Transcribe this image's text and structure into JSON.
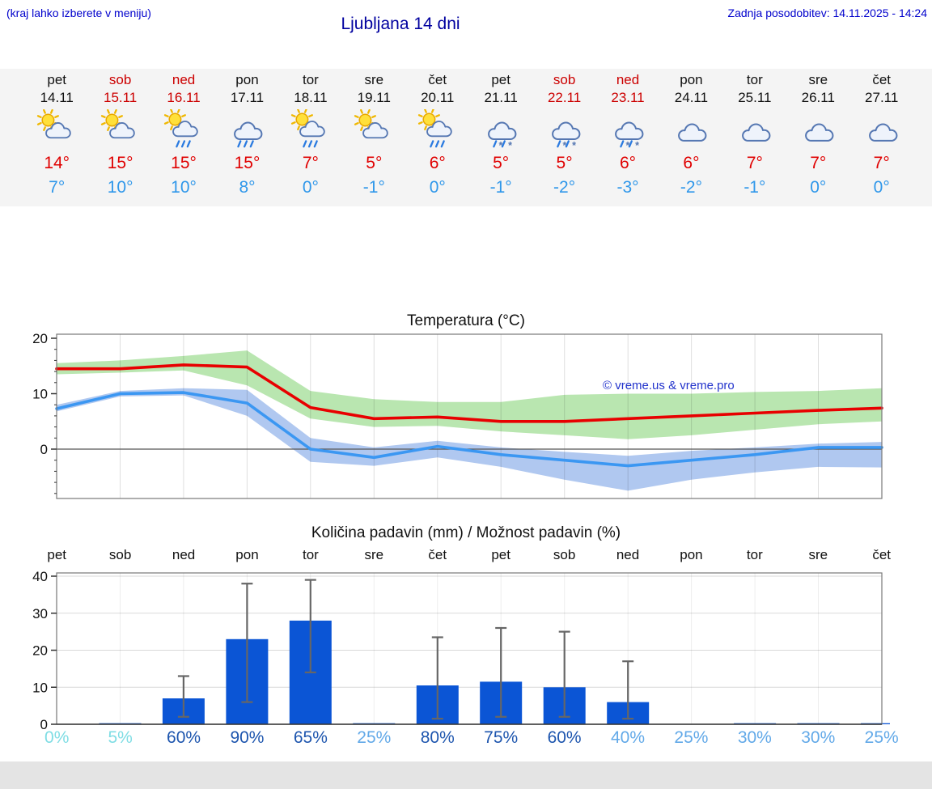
{
  "header": {
    "hint": "(kraj lahko izberete v meniju)",
    "title": "Ljubljana 14 dni",
    "updated": "Zadnja posodobitev: 14.11.2025 - 14:24"
  },
  "forecast": {
    "days": [
      {
        "name": "pet",
        "date": "14.11",
        "weekend": false,
        "icon": "partly-sunny",
        "high": "14°",
        "low": "7°"
      },
      {
        "name": "sob",
        "date": "15.11",
        "weekend": true,
        "icon": "partly-sunny",
        "high": "15°",
        "low": "10°"
      },
      {
        "name": "ned",
        "date": "16.11",
        "weekend": true,
        "icon": "sun-rain",
        "high": "15°",
        "low": "10°"
      },
      {
        "name": "pon",
        "date": "17.11",
        "weekend": false,
        "icon": "rain",
        "high": "15°",
        "low": "8°"
      },
      {
        "name": "tor",
        "date": "18.11",
        "weekend": false,
        "icon": "sun-rain",
        "high": "7°",
        "low": "0°"
      },
      {
        "name": "sre",
        "date": "19.11",
        "weekend": false,
        "icon": "partly-sunny",
        "high": "5°",
        "low": "-1°"
      },
      {
        "name": "čet",
        "date": "20.11",
        "weekend": false,
        "icon": "sun-rain",
        "high": "6°",
        "low": "0°"
      },
      {
        "name": "pet",
        "date": "21.11",
        "weekend": false,
        "icon": "sleet",
        "high": "5°",
        "low": "-1°"
      },
      {
        "name": "sob",
        "date": "22.11",
        "weekend": true,
        "icon": "sleet",
        "high": "5°",
        "low": "-2°"
      },
      {
        "name": "ned",
        "date": "23.11",
        "weekend": true,
        "icon": "sleet",
        "high": "6°",
        "low": "-3°"
      },
      {
        "name": "pon",
        "date": "24.11",
        "weekend": false,
        "icon": "cloudy",
        "high": "6°",
        "low": "-2°"
      },
      {
        "name": "tor",
        "date": "25.11",
        "weekend": false,
        "icon": "cloudy",
        "high": "7°",
        "low": "-1°"
      },
      {
        "name": "sre",
        "date": "26.11",
        "weekend": false,
        "icon": "cloudy",
        "high": "7°",
        "low": "0°"
      },
      {
        "name": "čet",
        "date": "27.11",
        "weekend": false,
        "icon": "cloudy",
        "high": "7°",
        "low": "0°"
      }
    ]
  },
  "chart_data": [
    {
      "type": "line",
      "title": "Temperatura (°C)",
      "x": [
        "14.11",
        "15.11",
        "16.11",
        "17.11",
        "18.11",
        "19.11",
        "20.11",
        "21.11",
        "22.11",
        "23.11",
        "24.11",
        "25.11",
        "26.11",
        "27.11"
      ],
      "ylim": [
        -9,
        21
      ],
      "yticks": [
        0,
        10,
        20
      ],
      "grid": true,
      "watermark": "© vreme.us & vreme.pro",
      "series": [
        {
          "name": "max-temp",
          "color": "#e80000",
          "values": [
            14.5,
            14.5,
            15.2,
            14.8,
            7.5,
            5.5,
            5.8,
            5.0,
            5.0,
            5.5,
            6.0,
            6.5,
            7.0,
            7.4
          ]
        },
        {
          "name": "min-temp",
          "color": "#3b97f2",
          "values": [
            7.3,
            10.0,
            10.2,
            8.3,
            0.0,
            -1.5,
            0.5,
            -1.0,
            -2.0,
            -3.0,
            -2.0,
            -1.0,
            0.3,
            0.3
          ]
        }
      ],
      "bands": [
        {
          "name": "max-temp-range",
          "color": "#b9e6b0",
          "upper": [
            15.5,
            16.0,
            16.8,
            17.8,
            10.5,
            9.0,
            8.5,
            8.5,
            9.8,
            10.0,
            10.0,
            10.3,
            10.5,
            11.0
          ],
          "lower": [
            13.5,
            13.8,
            14.2,
            11.5,
            5.5,
            4.0,
            4.2,
            3.2,
            2.5,
            1.8,
            2.5,
            3.5,
            4.5,
            5.0
          ]
        },
        {
          "name": "min-temp-range",
          "color": "#b0c8f0",
          "upper": [
            8.0,
            10.5,
            11.0,
            10.7,
            2.0,
            0.3,
            1.5,
            0.3,
            -0.5,
            -1.2,
            -0.3,
            0.3,
            1.0,
            1.3
          ],
          "lower": [
            6.8,
            9.5,
            9.7,
            6.0,
            -2.3,
            -3.0,
            -1.5,
            -3.2,
            -5.5,
            -7.5,
            -5.5,
            -4.2,
            -3.2,
            -3.3
          ]
        }
      ]
    },
    {
      "type": "bar",
      "title": "Količina padavin (mm) / Možnost padavin (%)",
      "categories": [
        "pet",
        "sob",
        "ned",
        "pon",
        "tor",
        "sre",
        "čet",
        "pet",
        "sob",
        "ned",
        "pon",
        "tor",
        "sre",
        "čet"
      ],
      "values": [
        0,
        0.2,
        7,
        23,
        28,
        0.2,
        10.5,
        11.5,
        10,
        6,
        0,
        0.2,
        0.2,
        0.2
      ],
      "whiskers": [
        null,
        null,
        [
          2,
          13
        ],
        [
          6,
          38
        ],
        [
          14,
          39
        ],
        null,
        [
          1.5,
          23.5
        ],
        [
          2,
          26
        ],
        [
          2,
          25
        ],
        [
          1.5,
          17
        ],
        null,
        null,
        null,
        null
      ],
      "probabilities": [
        "0%",
        "5%",
        "60%",
        "90%",
        "65%",
        "25%",
        "80%",
        "75%",
        "60%",
        "40%",
        "25%",
        "30%",
        "30%",
        "25%"
      ],
      "prob_colors": [
        "#7fdde4",
        "#7fdde4",
        "#1d55ae",
        "#1d55ae",
        "#1d55ae",
        "#62a9e8",
        "#1d55ae",
        "#1d55ae",
        "#1d55ae",
        "#62a9e8",
        "#62a9e8",
        "#62a9e8",
        "#62a9e8",
        "#62a9e8"
      ],
      "ylim": [
        0,
        42
      ],
      "yticks": [
        0,
        10,
        20,
        30,
        40
      ],
      "bar_color": "#0b55d5",
      "whisker_color": "#666666"
    }
  ],
  "colors": {
    "high_temp": "#e00000",
    "low_temp": "#2f97ea",
    "weekend_red": "#cc0000",
    "header_blue": "#0000cc",
    "title_blue": "#00009f"
  }
}
